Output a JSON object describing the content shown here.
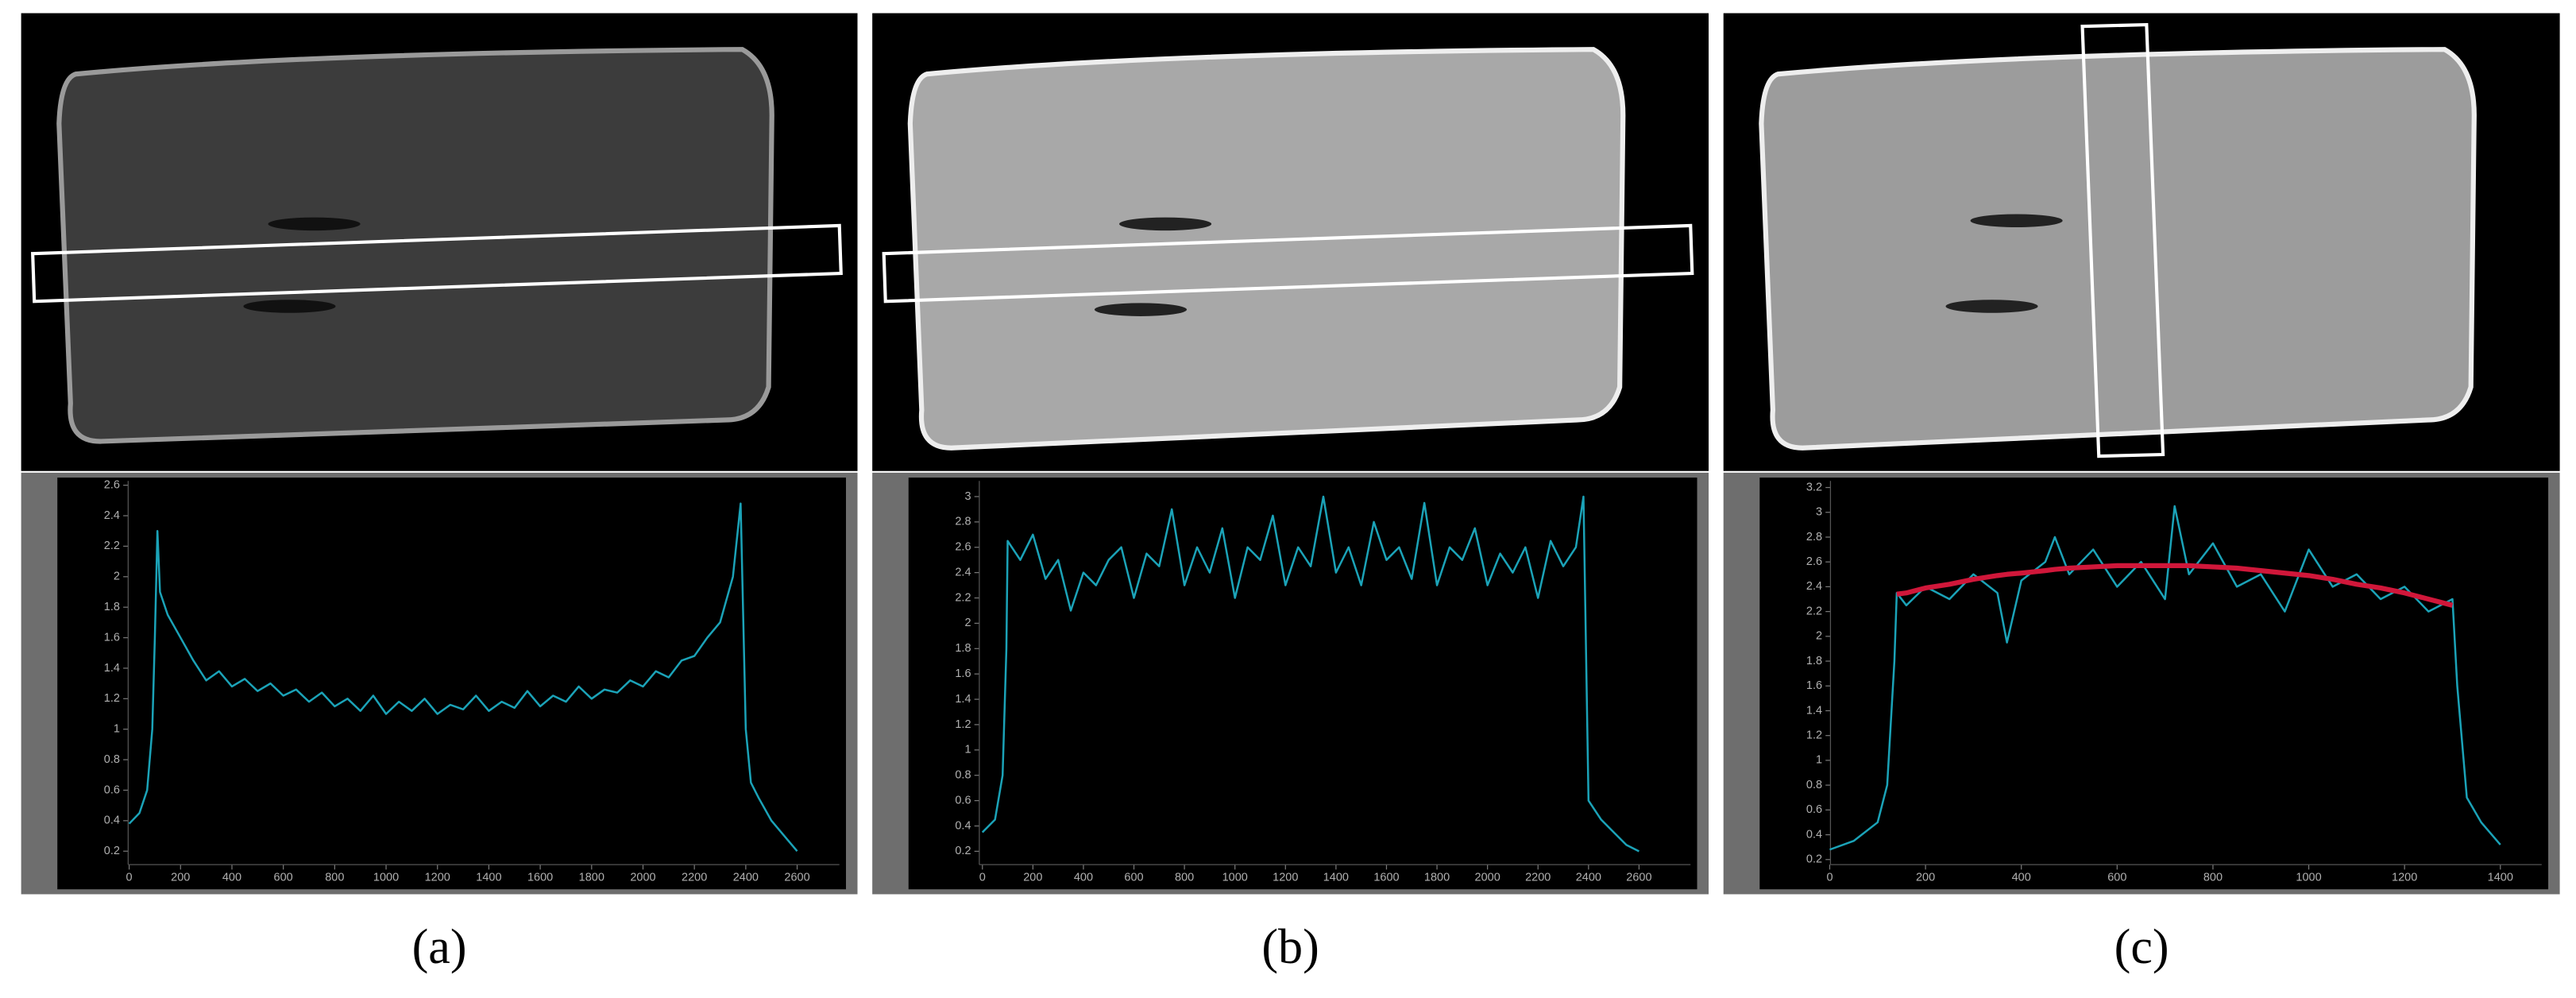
{
  "chart_data": [
    {
      "type": "line",
      "caption": "(a)",
      "x": [
        0,
        40,
        70,
        90,
        100,
        110,
        120,
        150,
        200,
        250,
        300,
        350,
        400,
        450,
        500,
        550,
        600,
        650,
        700,
        750,
        800,
        850,
        900,
        950,
        1000,
        1050,
        1100,
        1150,
        1200,
        1250,
        1300,
        1350,
        1400,
        1450,
        1500,
        1550,
        1600,
        1650,
        1700,
        1750,
        1800,
        1850,
        1900,
        1950,
        2000,
        2050,
        2100,
        2150,
        2200,
        2250,
        2300,
        2350,
        2380,
        2400,
        2420,
        2450,
        2500,
        2550,
        2600
      ],
      "series": [
        {
          "color": "#1ba3b8",
          "values": [
            0.38,
            0.45,
            0.6,
            1.0,
            1.6,
            2.3,
            1.9,
            1.75,
            1.6,
            1.45,
            1.32,
            1.38,
            1.28,
            1.33,
            1.25,
            1.3,
            1.22,
            1.26,
            1.18,
            1.24,
            1.15,
            1.2,
            1.12,
            1.22,
            1.1,
            1.18,
            1.12,
            1.2,
            1.1,
            1.16,
            1.13,
            1.22,
            1.12,
            1.18,
            1.14,
            1.25,
            1.15,
            1.22,
            1.18,
            1.28,
            1.2,
            1.26,
            1.24,
            1.32,
            1.28,
            1.38,
            1.34,
            1.45,
            1.48,
            1.6,
            1.7,
            2.0,
            2.48,
            1.0,
            0.65,
            0.55,
            0.4,
            0.3,
            0.2
          ]
        }
      ],
      "xlim": [
        -100,
        2790
      ],
      "ylim": [
        -0.05,
        2.65
      ],
      "xticks": [
        0,
        200,
        400,
        600,
        800,
        1000,
        1200,
        1400,
        1600,
        1800,
        2000,
        2200,
        2400,
        2600
      ],
      "yticks": [
        0.2,
        0.4,
        0.6,
        0.8,
        1,
        1.2,
        1.4,
        1.6,
        1.8,
        2,
        2.2,
        2.4,
        2.6
      ]
    },
    {
      "type": "line",
      "caption": "(b)",
      "x": [
        0,
        50,
        80,
        95,
        100,
        150,
        200,
        250,
        300,
        350,
        400,
        450,
        500,
        550,
        600,
        650,
        700,
        750,
        800,
        850,
        900,
        950,
        1000,
        1050,
        1100,
        1150,
        1200,
        1250,
        1300,
        1350,
        1400,
        1450,
        1500,
        1550,
        1600,
        1650,
        1700,
        1750,
        1800,
        1850,
        1900,
        1950,
        2000,
        2050,
        2100,
        2150,
        2200,
        2250,
        2300,
        2350,
        2380,
        2400,
        2450,
        2500,
        2550,
        2600
      ],
      "series": [
        {
          "color": "#1ba3b8",
          "values": [
            0.35,
            0.45,
            0.8,
            1.8,
            2.65,
            2.5,
            2.7,
            2.35,
            2.5,
            2.1,
            2.4,
            2.3,
            2.5,
            2.6,
            2.2,
            2.55,
            2.45,
            2.9,
            2.3,
            2.6,
            2.4,
            2.75,
            2.2,
            2.6,
            2.5,
            2.85,
            2.3,
            2.6,
            2.45,
            3.0,
            2.4,
            2.6,
            2.3,
            2.8,
            2.5,
            2.6,
            2.35,
            2.95,
            2.3,
            2.6,
            2.5,
            2.75,
            2.3,
            2.55,
            2.4,
            2.6,
            2.2,
            2.65,
            2.45,
            2.6,
            3.0,
            0.6,
            0.45,
            0.35,
            0.25,
            0.2
          ]
        }
      ],
      "xlim": [
        -110,
        2830
      ],
      "ylim": [
        -0.1,
        3.15
      ],
      "xticks": [
        0,
        200,
        400,
        600,
        800,
        1000,
        1200,
        1400,
        1600,
        1800,
        2000,
        2200,
        2400,
        2600
      ],
      "yticks": [
        0.2,
        0.4,
        0.6,
        0.8,
        1,
        1.2,
        1.4,
        1.6,
        1.8,
        2,
        2.2,
        2.4,
        2.6,
        2.8,
        3
      ]
    },
    {
      "type": "line",
      "caption": "(c)",
      "x": [
        0,
        50,
        100,
        120,
        135,
        140,
        160,
        200,
        250,
        300,
        350,
        370,
        400,
        450,
        470,
        500,
        550,
        600,
        650,
        700,
        720,
        750,
        800,
        850,
        900,
        950,
        1000,
        1050,
        1100,
        1150,
        1200,
        1250,
        1300,
        1310,
        1330,
        1360,
        1400
      ],
      "series": [
        {
          "color": "#1ba3b8",
          "values": [
            0.28,
            0.35,
            0.5,
            0.8,
            1.8,
            2.35,
            2.25,
            2.4,
            2.3,
            2.5,
            2.35,
            1.95,
            2.45,
            2.6,
            2.8,
            2.5,
            2.7,
            2.4,
            2.6,
            2.3,
            3.05,
            2.5,
            2.75,
            2.4,
            2.5,
            2.2,
            2.7,
            2.4,
            2.5,
            2.3,
            2.4,
            2.2,
            2.3,
            1.6,
            0.7,
            0.5,
            0.32
          ]
        },
        {
          "color": "#d0173a",
          "values": [
            null,
            null,
            null,
            null,
            null,
            2.34,
            2.35,
            2.39,
            2.42,
            2.46,
            2.49,
            2.5,
            2.51,
            2.53,
            2.54,
            2.55,
            2.56,
            2.57,
            2.57,
            2.57,
            2.57,
            2.57,
            2.56,
            2.55,
            2.53,
            2.51,
            2.49,
            2.46,
            2.42,
            2.39,
            2.35,
            2.3,
            2.25,
            null,
            null,
            null,
            null
          ]
        }
      ],
      "xlim": [
        -50,
        1500
      ],
      "ylim": [
        -0.04,
        3.28
      ],
      "xticks": [
        0,
        200,
        400,
        600,
        800,
        1000,
        1200,
        1400
      ],
      "yticks": [
        0.2,
        0.4,
        0.6,
        0.8,
        1,
        1.2,
        1.4,
        1.6,
        1.8,
        2,
        2.2,
        2.4,
        2.6,
        2.8,
        3,
        3.2
      ]
    }
  ]
}
